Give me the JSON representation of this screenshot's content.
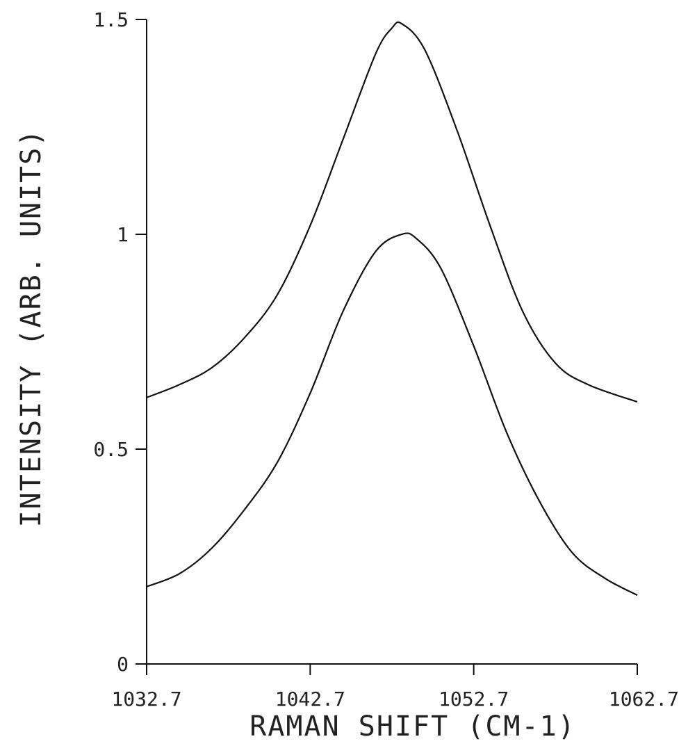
{
  "chart_data": {
    "type": "line",
    "title": "",
    "xlabel": "RAMAN SHIFT (CM-1)",
    "ylabel": "INTENSITY (ARB. UNITS)",
    "xlim": [
      1032.7,
      1062.7
    ],
    "ylim": [
      0,
      1.5
    ],
    "x_ticks": [
      {
        "value": 1032.7,
        "label": "1032.7"
      },
      {
        "value": 1042.7,
        "label": "1042.7"
      },
      {
        "value": 1052.7,
        "label": "1052.7"
      },
      {
        "value": 1062.7,
        "label": "1062.7"
      }
    ],
    "y_ticks": [
      {
        "value": 0,
        "label": "0"
      },
      {
        "value": 0.5,
        "label": "0.5"
      },
      {
        "value": 1,
        "label": "1"
      },
      {
        "value": 1.5,
        "label": "1.5"
      }
    ],
    "grid": false,
    "series": [
      {
        "x": [
          1032.7,
          1034.7,
          1036.7,
          1038.7,
          1040.7,
          1042.7,
          1044.7,
          1046.7,
          1047.7,
          1048.3,
          1049.7,
          1051.7,
          1053.7,
          1055.7,
          1057.7,
          1059.7,
          1062.7
        ],
        "values": [
          0.62,
          0.65,
          0.69,
          0.76,
          0.86,
          1.02,
          1.22,
          1.42,
          1.48,
          1.49,
          1.43,
          1.24,
          1.02,
          0.82,
          0.7,
          0.65,
          0.61
        ]
      },
      {
        "x": [
          1032.7,
          1034.7,
          1036.7,
          1038.7,
          1040.7,
          1042.7,
          1044.7,
          1046.7,
          1048.3,
          1049.2,
          1050.7,
          1052.7,
          1054.7,
          1056.7,
          1058.7,
          1060.7,
          1062.7
        ],
        "values": [
          0.18,
          0.21,
          0.27,
          0.36,
          0.47,
          0.63,
          0.82,
          0.96,
          1.0,
          0.99,
          0.92,
          0.74,
          0.54,
          0.38,
          0.26,
          0.2,
          0.16
        ]
      }
    ]
  }
}
